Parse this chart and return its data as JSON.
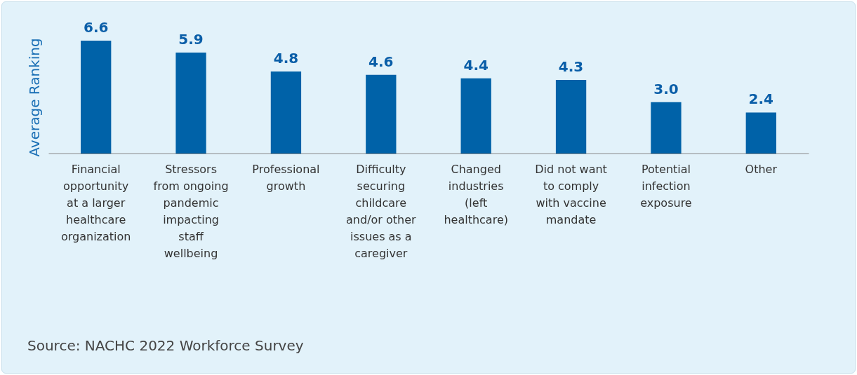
{
  "chart_data": {
    "type": "bar",
    "ylabel": "Average Ranking",
    "categories": [
      "Financial opportunity at a larger healthcare organization",
      "Stressors from ongoing pandemic impacting staff wellbeing",
      "Professional growth",
      "Difficulty securing childcare and/or other issues as a caregiver",
      "Changed industries (left healthcare)",
      "Did not want to comply with vaccine mandate",
      "Potential infection exposure",
      "Other"
    ],
    "values": [
      6.6,
      5.9,
      4.8,
      4.6,
      4.4,
      4.3,
      3.0,
      2.4
    ],
    "value_labels": [
      "6.6",
      "5.9",
      "4.8",
      "4.6",
      "4.4",
      "4.3",
      "3.0",
      "2.4"
    ],
    "color": "#0062a8",
    "annotations": [
      "Source: NACHC 2022 Workforce Survey"
    ]
  }
}
